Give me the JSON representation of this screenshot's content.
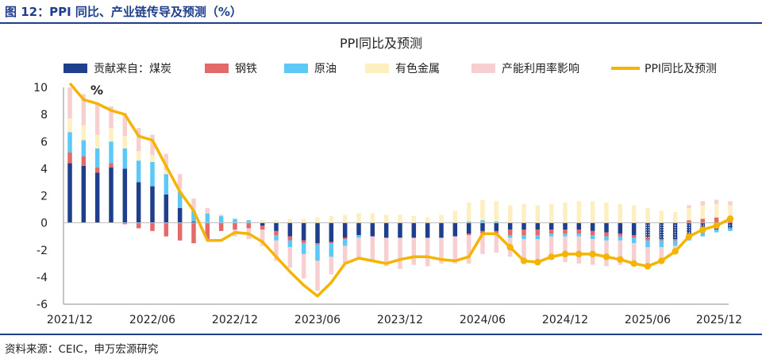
{
  "figure": {
    "title": "图 12：PPI 同比、产业链传导及预测（%）",
    "source": "资料来源：CEIC，申万宏源研究"
  },
  "chart_data": {
    "type": "bar",
    "title": "PPI同比及预测",
    "ylabel": "%",
    "ylim": [
      -6,
      10
    ],
    "yticks": [
      -6,
      -4,
      -2,
      0,
      2,
      4,
      6,
      8,
      10
    ],
    "x_tick_labels": [
      "2021/12",
      "2022/06",
      "2022/12",
      "2023/06",
      "2023/12",
      "2024/06",
      "2024/12",
      "2025/06",
      "2025/12"
    ],
    "x_tick_index": [
      0,
      6,
      12,
      18,
      24,
      30,
      36,
      42,
      48
    ],
    "forecast_from_index": 42,
    "colors": {
      "coal": "#1f3e8c",
      "steel": "#e46a6a",
      "oil": "#5bc8f5",
      "metal": "#fdefc0",
      "capacity": "#f8cfd0",
      "ppi": "#f5b400"
    },
    "series": [
      {
        "name": "贡献来自：煤炭",
        "key": "coal",
        "values": [
          4.4,
          4.2,
          3.7,
          4.1,
          4.0,
          3.0,
          2.7,
          2.1,
          1.1,
          0.1,
          0,
          0,
          0,
          0,
          -0.2,
          -0.6,
          -1.0,
          -1.3,
          -1.5,
          -1.4,
          -1.1,
          -0.9,
          -1.0,
          -1.1,
          -1.1,
          -1.1,
          -1.1,
          -1.1,
          -1.0,
          -0.8,
          -0.6,
          -0.6,
          -0.5,
          -0.5,
          -0.5,
          -0.5,
          -0.5,
          -0.5,
          -0.6,
          -0.7,
          -0.8,
          -0.9,
          -1.1,
          -1.2,
          -1.2,
          -1.0,
          -0.7,
          -0.5,
          -0.4
        ]
      },
      {
        "name": "钢铁",
        "key": "steel",
        "values": [
          0.8,
          0.7,
          0.4,
          0.3,
          -0.1,
          -0.4,
          -0.6,
          -1.0,
          -1.3,
          -1.5,
          -1.2,
          -0.6,
          -0.5,
          -0.4,
          -0.3,
          -0.3,
          -0.3,
          -0.2,
          -0.1,
          -0.1,
          -0.1,
          0,
          0,
          0,
          0,
          0,
          0,
          0,
          0,
          -0.1,
          -0.2,
          -0.3,
          -0.4,
          -0.4,
          -0.4,
          -0.3,
          -0.3,
          -0.3,
          -0.3,
          -0.3,
          -0.2,
          -0.2,
          -0.2,
          -0.1,
          -0.1,
          0.2,
          0.3,
          0.4,
          0.3
        ]
      },
      {
        "name": "原油",
        "key": "oil",
        "values": [
          1.5,
          1.2,
          1.4,
          1.6,
          1.5,
          1.6,
          1.8,
          1.5,
          1.2,
          0.8,
          0.7,
          0.5,
          0.3,
          0.2,
          0,
          -0.4,
          -0.5,
          -0.8,
          -1.2,
          -1.0,
          -0.5,
          -0.2,
          0,
          0,
          0,
          0,
          0,
          0,
          0,
          0.1,
          0.2,
          0.1,
          -0.2,
          -0.3,
          -0.3,
          -0.2,
          -0.2,
          -0.2,
          -0.3,
          -0.3,
          -0.3,
          -0.4,
          -0.5,
          -0.5,
          -0.4,
          -0.3,
          -0.3,
          -0.2,
          -0.2
        ]
      },
      {
        "name": "有色金属",
        "key": "metal",
        "values": [
          1.0,
          1.1,
          1.0,
          1.0,
          0.9,
          0.7,
          0.5,
          0.3,
          0.2,
          0.1,
          0,
          0,
          0,
          0,
          0.2,
          0.2,
          0.3,
          0.3,
          0.4,
          0.5,
          0.6,
          0.7,
          0.7,
          0.6,
          0.6,
          0.5,
          0.4,
          0.6,
          0.9,
          1.4,
          1.5,
          1.5,
          1.3,
          1.4,
          1.3,
          1.4,
          1.5,
          1.6,
          1.6,
          1.5,
          1.4,
          1.3,
          1.1,
          0.9,
          0.8,
          0.9,
          1.0,
          1.0,
          1.0
        ]
      },
      {
        "name": "产能利用率影响",
        "key": "capacity",
        "values": [
          2.3,
          2.3,
          2.3,
          1.6,
          1.7,
          1.7,
          1.5,
          1.2,
          1.1,
          0.8,
          0.4,
          0.1,
          -0.5,
          -0.8,
          -1.2,
          -1.5,
          -1.5,
          -1.8,
          -2.2,
          -1.3,
          -1.3,
          -1.5,
          -1.9,
          -2.1,
          -2.3,
          -2.0,
          -2.1,
          -1.9,
          -2.0,
          -2.1,
          -1.5,
          -1.3,
          -1.4,
          -1.5,
          -1.7,
          -1.7,
          -1.9,
          -2.0,
          -1.9,
          -1.9,
          -1.8,
          -1.4,
          -1.2,
          -0.9,
          -0.4,
          0.2,
          0.3,
          0.3,
          0.3
        ]
      },
      {
        "name": "PPI同比及预测",
        "key": "ppi",
        "values": [
          10.3,
          9.1,
          8.8,
          8.3,
          8.0,
          6.4,
          6.1,
          4.2,
          2.3,
          0.9,
          -1.3,
          -1.3,
          -0.7,
          -0.8,
          -1.4,
          -2.5,
          -3.6,
          -4.6,
          -5.4,
          -4.4,
          -3.0,
          -2.6,
          -2.8,
          -3.0,
          -2.7,
          -2.5,
          -2.5,
          -2.7,
          -2.8,
          -2.5,
          -0.8,
          -0.8,
          -1.8,
          -2.8,
          -2.9,
          -2.5,
          -2.3,
          -2.3,
          -2.3,
          -2.5,
          -2.7,
          -3.0,
          -3.2,
          -2.8,
          -2.1,
          -1.0,
          -0.5,
          -0.2,
          0.3
        ]
      }
    ],
    "legend": [
      "贡献来自：煤炭",
      "钢铁",
      "原油",
      "有色金属",
      "产能利用率影响",
      "PPI同比及预测"
    ],
    "legend_position": "top"
  }
}
